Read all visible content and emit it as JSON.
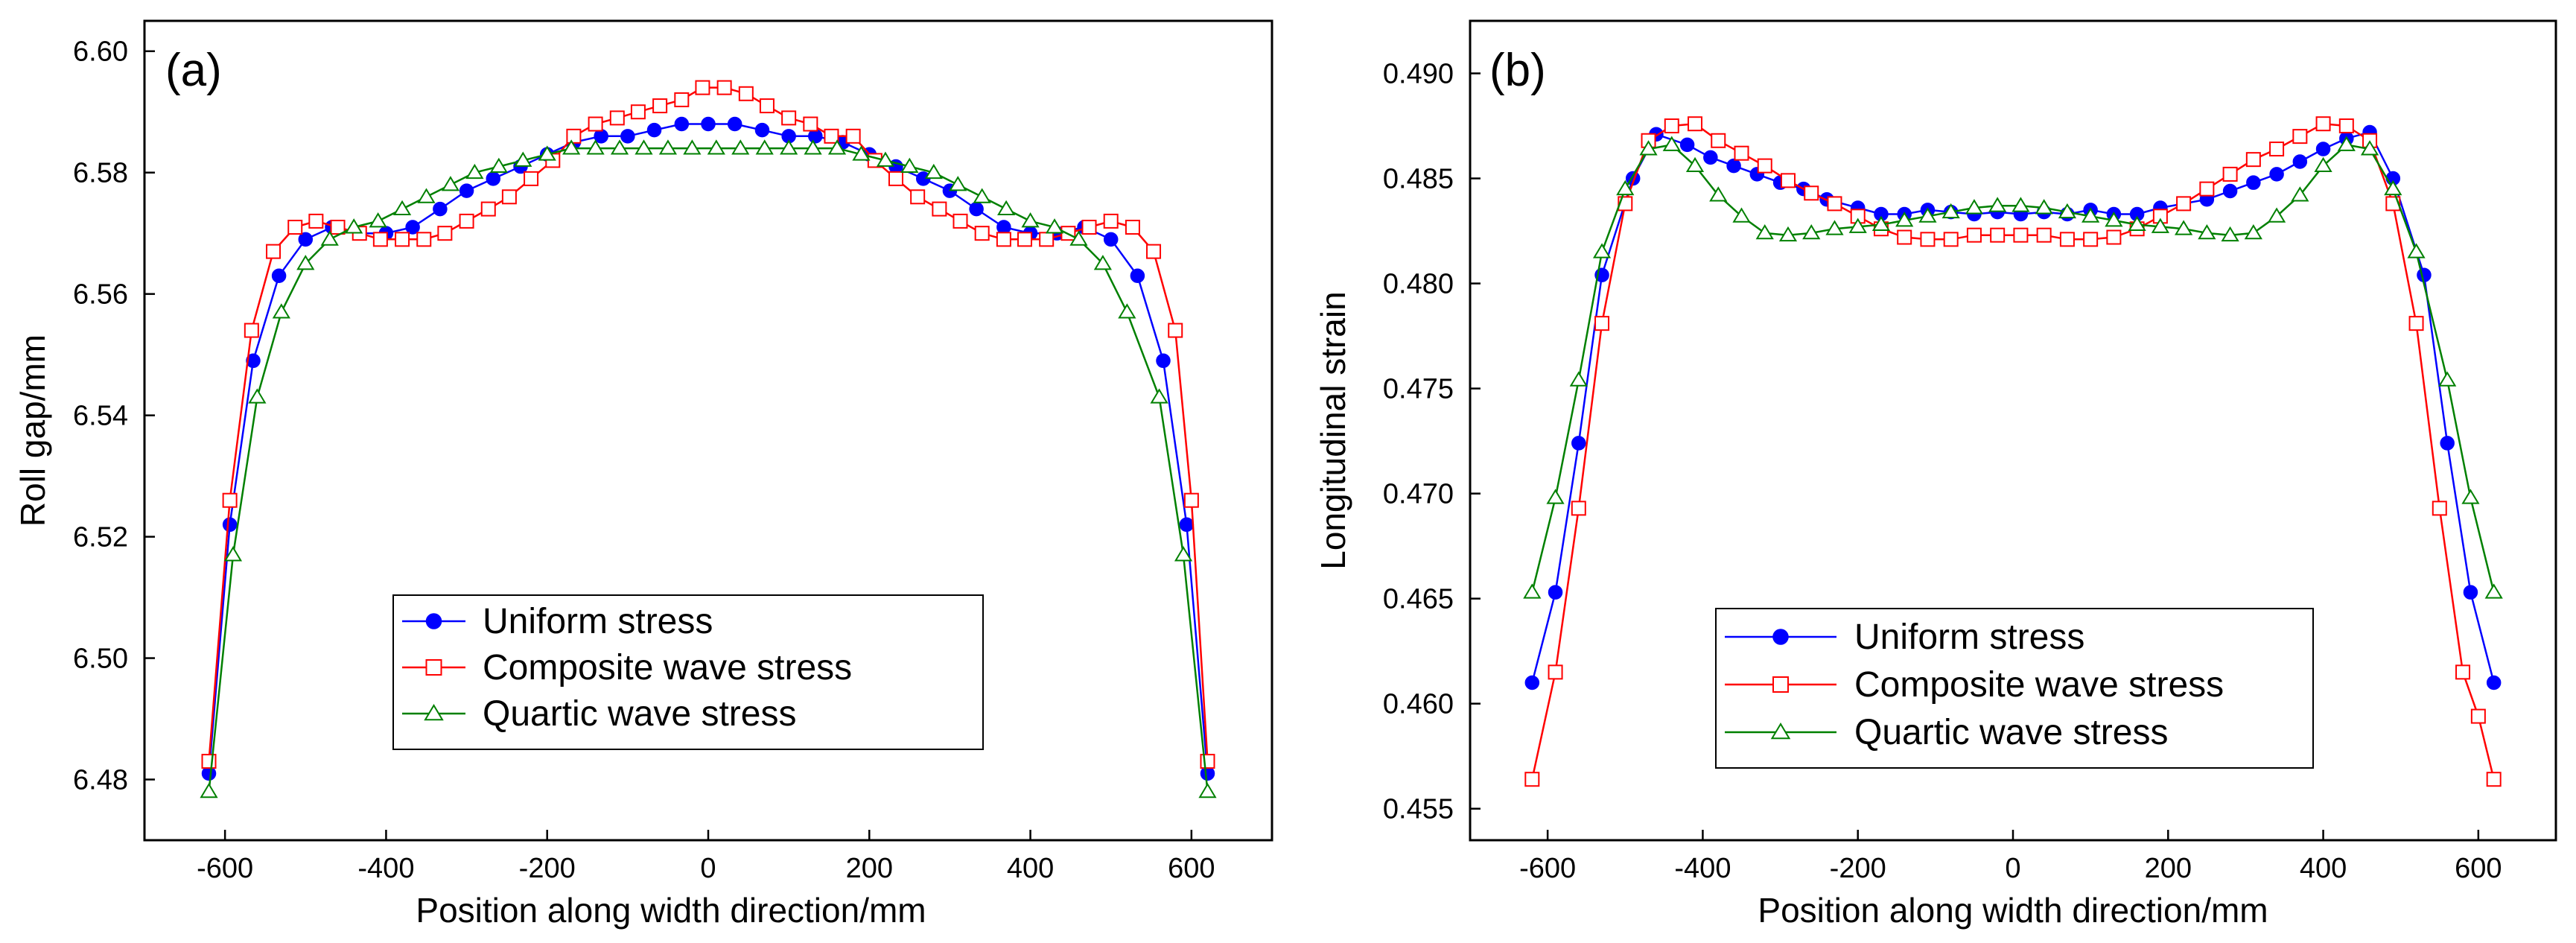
{
  "chart_data": [
    {
      "panel_label": "(a)",
      "type": "line",
      "title": "",
      "xlabel": "Position along width direction/mm",
      "ylabel": "Roll gap/mm",
      "xlim": [
        -700,
        700
      ],
      "ylim": [
        6.47,
        6.605
      ],
      "xticks": [
        -600,
        -400,
        -200,
        0,
        200,
        400,
        600
      ],
      "xtick_labels": [
        "-600",
        "-400",
        "-200",
        "0",
        "200",
        "400",
        "600"
      ],
      "yticks": [
        6.48,
        6.5,
        6.52,
        6.54,
        6.56,
        6.58,
        6.6
      ],
      "ytick_labels": [
        "6.48",
        "6.50",
        "6.52",
        "6.54",
        "6.56",
        "6.58",
        "6.60"
      ],
      "legend_position": "bottom-center",
      "series": [
        {
          "name": "Uniform stress",
          "color": "#0000ff",
          "marker": "filled-circle",
          "x": [
            -620,
            -594,
            -565,
            -533,
            -500,
            -467,
            -433,
            -400,
            -367,
            -333,
            -300,
            -267,
            -233,
            -200,
            -167,
            -133,
            -100,
            -67,
            -33,
            0,
            33,
            67,
            100,
            133,
            167,
            200,
            233,
            267,
            300,
            333,
            367,
            400,
            433,
            467,
            500,
            533,
            565,
            594,
            620
          ],
          "values": [
            6.481,
            6.522,
            6.549,
            6.563,
            6.569,
            6.571,
            6.57,
            6.57,
            6.571,
            6.574,
            6.577,
            6.579,
            6.581,
            6.583,
            6.585,
            6.586,
            6.586,
            6.587,
            6.588,
            6.588,
            6.588,
            6.587,
            6.586,
            6.586,
            6.585,
            6.583,
            6.581,
            6.579,
            6.577,
            6.574,
            6.571,
            6.57,
            6.57,
            6.571,
            6.569,
            6.563,
            6.549,
            6.522,
            6.481
          ]
        },
        {
          "name": "Composite wave stress",
          "color": "#ff0000",
          "marker": "open-square",
          "x": [
            -620,
            -594,
            -567,
            -540,
            -513,
            -487,
            -460,
            -433,
            -407,
            -380,
            -353,
            -327,
            -300,
            -273,
            -247,
            -220,
            -193,
            -167,
            -140,
            -113,
            -87,
            -60,
            -33,
            -7,
            20,
            47,
            73,
            100,
            127,
            153,
            180,
            207,
            233,
            260,
            287,
            313,
            340,
            367,
            393,
            420,
            447,
            473,
            500,
            527,
            553,
            580,
            600,
            620
          ],
          "values": [
            6.483,
            6.526,
            6.554,
            6.567,
            6.571,
            6.572,
            6.571,
            6.57,
            6.569,
            6.569,
            6.569,
            6.57,
            6.572,
            6.574,
            6.576,
            6.579,
            6.582,
            6.586,
            6.588,
            6.589,
            6.59,
            6.591,
            6.592,
            6.594,
            6.594,
            6.593,
            6.591,
            6.589,
            6.588,
            6.586,
            6.586,
            6.582,
            6.579,
            6.576,
            6.574,
            6.572,
            6.57,
            6.569,
            6.569,
            6.569,
            6.57,
            6.571,
            6.572,
            6.571,
            6.567,
            6.554,
            6.526,
            6.483
          ]
        },
        {
          "name": "Quartic wave stress",
          "color": "#008000",
          "marker": "open-triangle",
          "x": [
            -620,
            -590,
            -560,
            -530,
            -500,
            -470,
            -440,
            -410,
            -380,
            -350,
            -320,
            -290,
            -260,
            -230,
            -200,
            -170,
            -140,
            -110,
            -80,
            -50,
            -20,
            10,
            40,
            70,
            100,
            130,
            160,
            190,
            220,
            250,
            280,
            310,
            340,
            370,
            400,
            430,
            460,
            490,
            520,
            560,
            590,
            620
          ],
          "values": [
            6.478,
            6.517,
            6.543,
            6.557,
            6.565,
            6.569,
            6.571,
            6.572,
            6.574,
            6.576,
            6.578,
            6.58,
            6.581,
            6.582,
            6.583,
            6.584,
            6.584,
            6.584,
            6.584,
            6.584,
            6.584,
            6.584,
            6.584,
            6.584,
            6.584,
            6.584,
            6.584,
            6.583,
            6.582,
            6.581,
            6.58,
            6.578,
            6.576,
            6.574,
            6.572,
            6.571,
            6.569,
            6.565,
            6.557,
            6.543,
            6.517,
            6.478
          ]
        }
      ]
    },
    {
      "panel_label": "(b)",
      "type": "line",
      "title": "",
      "xlabel": "Position along width direction/mm",
      "ylabel": "Longitudinal strain",
      "xlim": [
        -700,
        700
      ],
      "ylim": [
        0.4535,
        0.4925
      ],
      "xticks": [
        -600,
        -400,
        -200,
        0,
        200,
        400,
        600
      ],
      "xtick_labels": [
        "-600",
        "-400",
        "-200",
        "0",
        "200",
        "400",
        "600"
      ],
      "yticks": [
        0.455,
        0.46,
        0.465,
        0.47,
        0.475,
        0.48,
        0.485,
        0.49
      ],
      "ytick_labels": [
        "0.455",
        "0.460",
        "0.465",
        "0.470",
        "0.475",
        "0.480",
        "0.485",
        "0.490"
      ],
      "legend_position": "bottom-center",
      "series": [
        {
          "name": "Uniform stress",
          "color": "#0000ff",
          "marker": "filled-circle",
          "x": [
            -620,
            -590,
            -560,
            -530,
            -490,
            -460,
            -420,
            -390,
            -360,
            -330,
            -300,
            -270,
            -240,
            -200,
            -170,
            -140,
            -110,
            -80,
            -50,
            -20,
            10,
            40,
            70,
            100,
            130,
            160,
            190,
            220,
            250,
            280,
            310,
            340,
            370,
            400,
            430,
            460,
            490,
            530,
            560,
            590,
            620
          ],
          "values": [
            0.461,
            0.4653,
            0.4724,
            0.4804,
            0.485,
            0.4871,
            0.4866,
            0.486,
            0.4856,
            0.4852,
            0.4848,
            0.4845,
            0.484,
            0.4836,
            0.4833,
            0.4833,
            0.4835,
            0.4834,
            0.4833,
            0.4834,
            0.4833,
            0.4834,
            0.4833,
            0.4835,
            0.4833,
            0.4833,
            0.4836,
            0.4838,
            0.484,
            0.4844,
            0.4848,
            0.4852,
            0.4858,
            0.4864,
            0.4869,
            0.4872,
            0.485,
            0.4804,
            0.4724,
            0.4653,
            0.461
          ]
        },
        {
          "name": "Composite wave stress",
          "color": "#ff0000",
          "marker": "open-square",
          "x": [
            -620,
            -590,
            -560,
            -530,
            -500,
            -470,
            -440,
            -410,
            -380,
            -350,
            -320,
            -290,
            -260,
            -230,
            -200,
            -170,
            -140,
            -110,
            -80,
            -50,
            -20,
            10,
            40,
            70,
            100,
            130,
            160,
            190,
            220,
            250,
            280,
            310,
            340,
            370,
            400,
            430,
            460,
            490,
            520,
            550,
            580,
            600,
            620
          ],
          "values": [
            0.4564,
            0.4615,
            0.4693,
            0.4781,
            0.4838,
            0.4868,
            0.4875,
            0.4876,
            0.4868,
            0.4862,
            0.4856,
            0.4849,
            0.4843,
            0.4838,
            0.4832,
            0.4826,
            0.4822,
            0.4821,
            0.4821,
            0.4823,
            0.4823,
            0.4823,
            0.4823,
            0.4821,
            0.4821,
            0.4822,
            0.4826,
            0.4832,
            0.4838,
            0.4845,
            0.4852,
            0.4859,
            0.4864,
            0.487,
            0.4876,
            0.4875,
            0.4868,
            0.4838,
            0.4781,
            0.4693,
            0.4615,
            0.4594,
            0.4564
          ]
        },
        {
          "name": "Quartic wave stress",
          "color": "#008000",
          "marker": "open-triangle",
          "x": [
            -620,
            -590,
            -560,
            -530,
            -500,
            -470,
            -440,
            -410,
            -380,
            -350,
            -320,
            -290,
            -260,
            -230,
            -200,
            -170,
            -140,
            -110,
            -80,
            -50,
            -20,
            10,
            40,
            70,
            100,
            130,
            160,
            190,
            220,
            250,
            280,
            310,
            340,
            370,
            400,
            430,
            460,
            490,
            520,
            560,
            590,
            620
          ],
          "values": [
            0.4653,
            0.4698,
            0.4754,
            0.4815,
            0.4845,
            0.4864,
            0.4866,
            0.4856,
            0.4842,
            0.4832,
            0.4824,
            0.4823,
            0.4824,
            0.4826,
            0.4827,
            0.4828,
            0.483,
            0.4832,
            0.4834,
            0.4836,
            0.4837,
            0.4837,
            0.4836,
            0.4834,
            0.4832,
            0.483,
            0.4828,
            0.4827,
            0.4826,
            0.4824,
            0.4823,
            0.4824,
            0.4832,
            0.4842,
            0.4856,
            0.4866,
            0.4864,
            0.4845,
            0.4815,
            0.4754,
            0.4698,
            0.4653
          ]
        }
      ]
    }
  ]
}
